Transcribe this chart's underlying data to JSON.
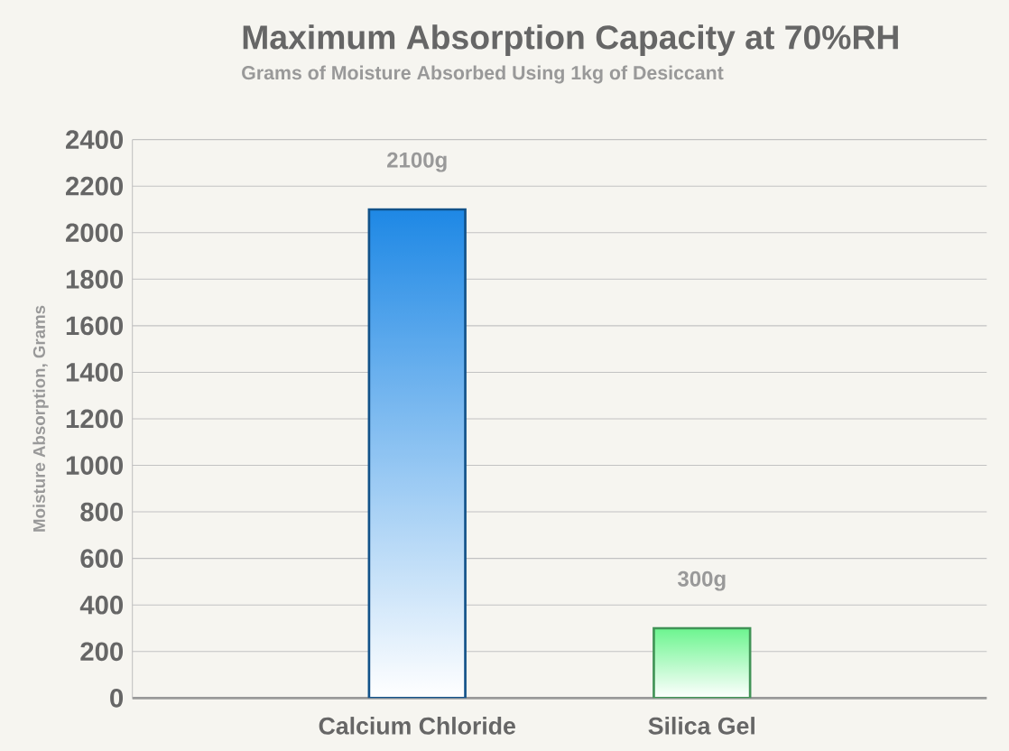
{
  "chart_data": {
    "type": "bar",
    "title": "Maximum Absorption Capacity at 70%RH",
    "subtitle": "Grams of Moisture Absorbed Using 1kg of Desiccant",
    "ylabel": "Moisture Absorption, Grams",
    "categories": [
      "Calcium Chloride",
      "Silica Gel"
    ],
    "values": [
      2100,
      300
    ],
    "colors": [
      "#1e88e5",
      "#6cf58f"
    ],
    "value_labels": [
      "2100g",
      "300g"
    ],
    "ylim": [
      0,
      2400
    ],
    "yticks": [
      0,
      200,
      400,
      600,
      800,
      1000,
      1200,
      1400,
      1600,
      1800,
      2000,
      2200,
      2400
    ],
    "grid": "y"
  }
}
